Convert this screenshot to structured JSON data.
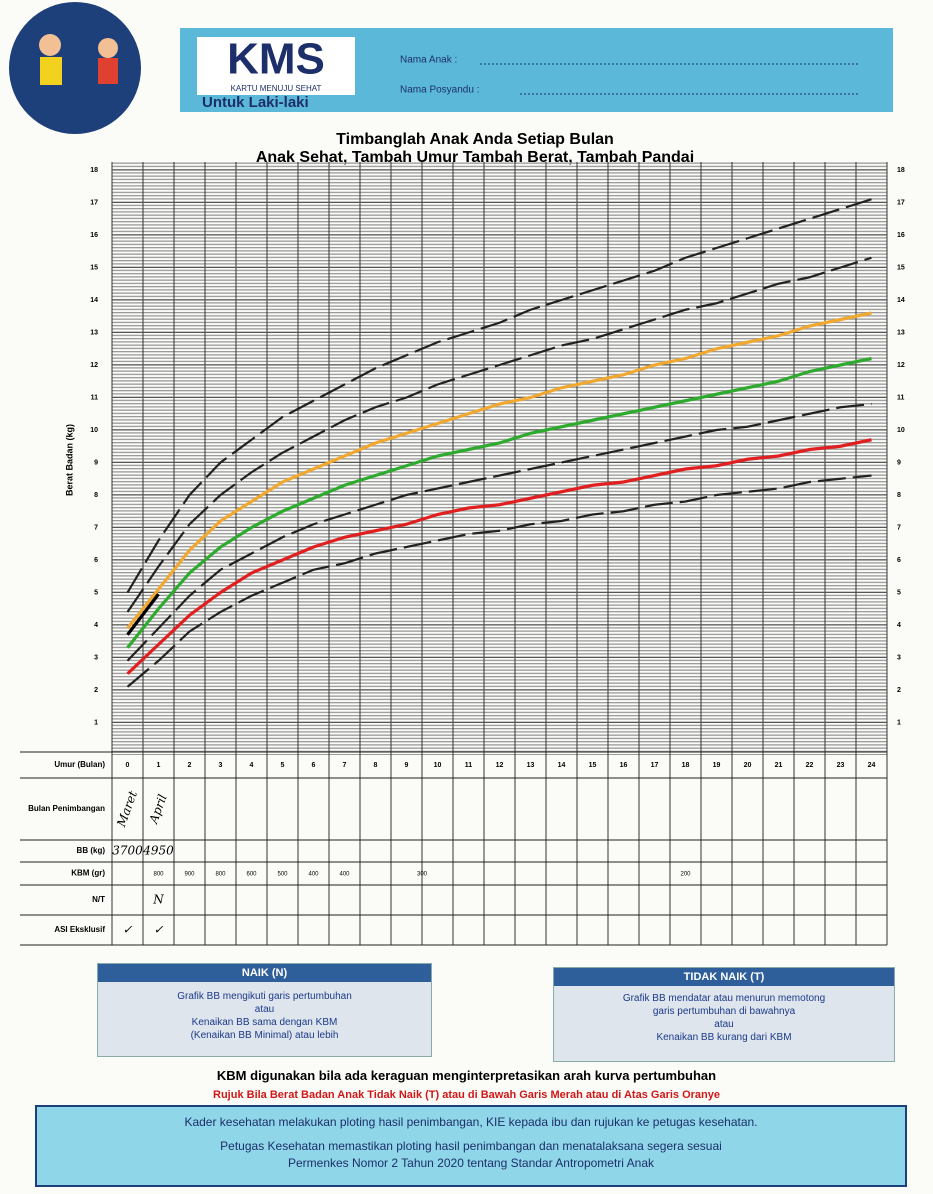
{
  "header": {
    "logo": "KMS",
    "logo_subtitle": "KARTU MENUJU SEHAT",
    "gender": "Untuk Laki-laki",
    "fields": [
      "Nama Anak :",
      "Nama Posyandu :"
    ]
  },
  "chart_data": {
    "type": "line",
    "title": "Timbanglah Anak Anda Setiap Bulan",
    "subtitle": "Anak Sehat, Tambah Umur Tambah Berat, Tambah Pandai",
    "y_label": "Berat Badan (kg)",
    "x_label": "Umur (Bulan)",
    "categories": [
      0,
      1,
      2,
      3,
      4,
      5,
      6,
      7,
      8,
      9,
      10,
      11,
      12,
      13,
      14,
      15,
      16,
      17,
      18,
      19,
      20,
      21,
      22,
      23,
      24
    ],
    "ylim": [
      0,
      18
    ],
    "yticks": [
      1,
      2,
      3,
      4,
      5,
      6,
      7,
      8,
      9,
      10,
      11,
      12,
      13,
      14,
      15,
      16,
      17,
      18
    ],
    "grid": true,
    "series": [
      {
        "color": "#222222",
        "dashed": true,
        "values": [
          5.0,
          6.6,
          8.0,
          9.0,
          9.7,
          10.4,
          10.9,
          11.4,
          11.9,
          12.3,
          12.7,
          13.0,
          13.3,
          13.7,
          14.0,
          14.3,
          14.6,
          14.9,
          15.3,
          15.6,
          15.9,
          16.2,
          16.5,
          16.8,
          17.1
        ]
      },
      {
        "color": "#222222",
        "dashed": true,
        "values": [
          4.4,
          5.8,
          7.1,
          8.0,
          8.7,
          9.3,
          9.8,
          10.3,
          10.7,
          11.0,
          11.4,
          11.7,
          12.0,
          12.3,
          12.6,
          12.8,
          13.1,
          13.4,
          13.7,
          13.9,
          14.2,
          14.5,
          14.7,
          15.0,
          15.3
        ]
      },
      {
        "color": "#f0a830",
        "dashed": false,
        "values": [
          3.9,
          5.1,
          6.3,
          7.2,
          7.8,
          8.4,
          8.8,
          9.2,
          9.6,
          9.9,
          10.2,
          10.5,
          10.8,
          11.0,
          11.3,
          11.5,
          11.7,
          12.0,
          12.2,
          12.5,
          12.7,
          12.9,
          13.2,
          13.4,
          13.6
        ]
      },
      {
        "color": "#2eaa2e",
        "dashed": false,
        "values": [
          3.3,
          4.5,
          5.6,
          6.4,
          7.0,
          7.5,
          7.9,
          8.3,
          8.6,
          8.9,
          9.2,
          9.4,
          9.6,
          9.9,
          10.1,
          10.3,
          10.5,
          10.7,
          10.9,
          11.1,
          11.3,
          11.5,
          11.8,
          12.0,
          12.2
        ]
      },
      {
        "color": "#222222",
        "dashed": true,
        "values": [
          2.9,
          3.9,
          4.9,
          5.7,
          6.2,
          6.7,
          7.1,
          7.4,
          7.7,
          8.0,
          8.2,
          8.4,
          8.6,
          8.8,
          9.0,
          9.2,
          9.4,
          9.6,
          9.8,
          10.0,
          10.1,
          10.3,
          10.5,
          10.7,
          10.8
        ]
      },
      {
        "color": "#e02020",
        "dashed": false,
        "values": [
          2.5,
          3.4,
          4.3,
          5.0,
          5.6,
          6.0,
          6.4,
          6.7,
          6.9,
          7.1,
          7.4,
          7.6,
          7.7,
          7.9,
          8.1,
          8.3,
          8.4,
          8.6,
          8.8,
          8.9,
          9.1,
          9.2,
          9.4,
          9.5,
          9.7
        ]
      },
      {
        "color": "#222222",
        "dashed": true,
        "values": [
          2.1,
          2.9,
          3.8,
          4.4,
          4.9,
          5.3,
          5.7,
          5.9,
          6.2,
          6.4,
          6.6,
          6.8,
          6.9,
          7.1,
          7.2,
          7.4,
          7.5,
          7.7,
          7.8,
          8.0,
          8.1,
          8.2,
          8.4,
          8.5,
          8.6
        ]
      },
      {
        "color": "#000000",
        "dashed": false,
        "values": [
          3.7,
          4.95,
          null,
          null,
          null,
          null,
          null,
          null,
          null,
          null,
          null,
          null,
          null,
          null,
          null,
          null,
          null,
          null,
          null,
          null,
          null,
          null,
          null,
          null,
          null
        ]
      }
    ]
  },
  "table": {
    "row_labels": [
      "Bulan Penimbangan",
      "BB (kg)",
      "KBM (gr)",
      "N/T",
      "ASI Eksklusif"
    ],
    "bulan": [
      "Maret",
      "April"
    ],
    "bb": [
      3700,
      4950
    ],
    "kbm": [
      800,
      900,
      800,
      600,
      500,
      400,
      400,
      300,
      200
    ],
    "nt": [
      {
        "month": 1,
        "text": "N"
      }
    ],
    "asi": [
      "✓",
      "✓"
    ]
  },
  "naik": {
    "title": "NAIK (N)",
    "lines": [
      "Grafik BB mengikuti garis pertumbuhan",
      "atau",
      "Kenaikan BB sama dengan KBM",
      "(Kenaikan BB Minimal) atau lebih"
    ]
  },
  "tidak_naik": {
    "title": "TIDAK NAIK (T)",
    "lines": [
      "Grafik BB mendatar atau menurun memotong",
      "garis pertumbuhan di bawahnya",
      "atau",
      "Kenaikan BB kurang dari KBM"
    ]
  },
  "note": "KBM digunakan bila ada keraguan menginterpretasikan arah kurva pertumbuhan",
  "warning": "Rujuk Bila Berat Badan Anak Tidak Naik (T) atau di Bawah Garis Merah atau di Atas Garis Oranye",
  "footer": [
    "Kader kesehatan melakukan ploting hasil penimbangan, KIE kepada ibu dan rujukan ke petugas kesehatan.",
    "Petugas Kesehatan memastikan ploting hasil penimbangan dan menatalaksana segera sesuai",
    "Permenkes Nomor 2 Tahun 2020 tentang Standar Antropometri Anak"
  ]
}
